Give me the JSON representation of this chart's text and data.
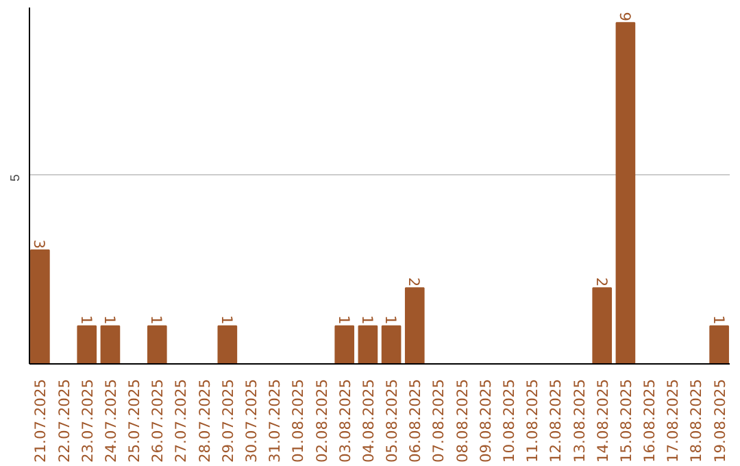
{
  "chart_data": {
    "type": "bar",
    "categories": [
      "21.07.2025",
      "22.07.2025",
      "23.07.2025",
      "24.07.2025",
      "25.07.2025",
      "26.07.2025",
      "27.07.2025",
      "28.07.2025",
      "29.07.2025",
      "30.07.2025",
      "31.07.2025",
      "01.08.2025",
      "02.08.2025",
      "03.08.2025",
      "04.08.2025",
      "05.08.2025",
      "06.08.2025",
      "07.08.2025",
      "08.08.2025",
      "09.08.2025",
      "10.08.2025",
      "11.08.2025",
      "12.08.2025",
      "13.08.2025",
      "14.08.2025",
      "15.08.2025",
      "16.08.2025",
      "17.08.2025",
      "18.08.2025",
      "19.08.2025"
    ],
    "values": [
      3,
      0,
      1,
      1,
      0,
      1,
      0,
      0,
      1,
      0,
      0,
      0,
      0,
      1,
      1,
      1,
      2,
      0,
      0,
      0,
      0,
      0,
      0,
      0,
      2,
      9,
      0,
      0,
      0,
      1
    ],
    "value_labels": [
      "3",
      null,
      "1",
      "1",
      null,
      "1",
      null,
      null,
      "1",
      null,
      null,
      null,
      null,
      "1",
      "1",
      "1",
      "2",
      null,
      null,
      null,
      null,
      null,
      null,
      null,
      "2",
      "9",
      null,
      null,
      null,
      "1"
    ],
    "color": "#a0572a",
    "ylim": [
      0,
      9.4
    ],
    "yticks": [
      5
    ],
    "grid": "y"
  }
}
